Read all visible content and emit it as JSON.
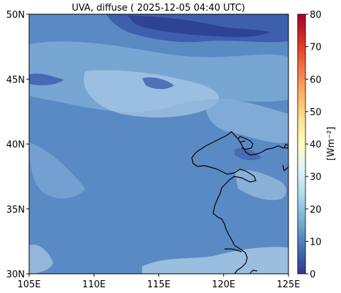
{
  "title": "UVA, diffuse ( 2025-12-05 04:40 UTC)",
  "map": {
    "lon_range": [
      105,
      125
    ],
    "lat_range": [
      30,
      50
    ],
    "x_ticks": [
      {
        "value": 105,
        "label": "105E"
      },
      {
        "value": 110,
        "label": "110E"
      },
      {
        "value": 115,
        "label": "115E"
      },
      {
        "value": 120,
        "label": "120E"
      },
      {
        "value": 125,
        "label": "125E"
      }
    ],
    "y_ticks": [
      {
        "value": 30,
        "label": "30N"
      },
      {
        "value": 35,
        "label": "35N"
      },
      {
        "value": 40,
        "label": "40N"
      },
      {
        "value": 45,
        "label": "45N"
      },
      {
        "value": 50,
        "label": "50N"
      }
    ],
    "field_colors": {
      "base": "#5a8ac4",
      "light": "#7eaad6",
      "lighter": "#a9cbe6",
      "dark": "#3d5fae",
      "darkest": "#2c3f94"
    },
    "coastline_color": "#000000"
  },
  "colorbar": {
    "label": "[Wm⁻²]",
    "range": [
      0,
      80
    ],
    "ticks": [
      "0",
      "10",
      "20",
      "30",
      "40",
      "50",
      "60",
      "70",
      "80"
    ],
    "colormap": [
      "#313695",
      "#4575b4",
      "#74add1",
      "#abd9e9",
      "#e0f3f8",
      "#ffffbf",
      "#fee090",
      "#fdae61",
      "#f46d43",
      "#d73027",
      "#a50026"
    ]
  }
}
